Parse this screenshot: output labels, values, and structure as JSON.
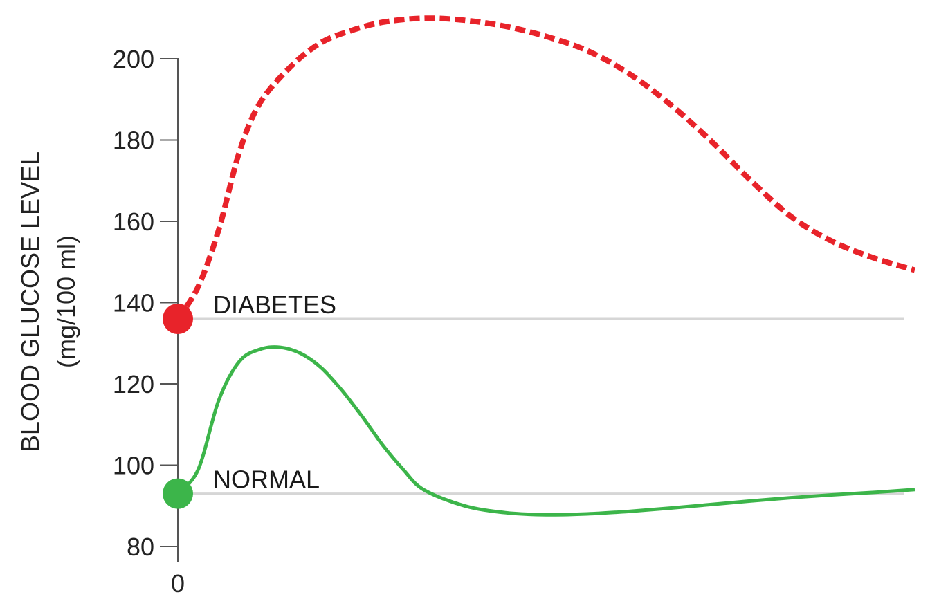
{
  "chart_data": {
    "type": "line",
    "title": "",
    "ylabel": "BLOOD GLUCOSE LEVEL",
    "ylabel_unit": "(mg/100 ml)",
    "xlabel": "",
    "x_tick_labels": [
      "0"
    ],
    "y_ticks": [
      80,
      100,
      120,
      140,
      160,
      180,
      200
    ],
    "ylim": [
      80,
      210
    ],
    "xlim": [
      0,
      3.6
    ],
    "grid": false,
    "legend": "none",
    "series": [
      {
        "name": "DIABETES",
        "color": "#e8232a",
        "style": "dashed",
        "baseline": 136,
        "x": [
          0,
          0.1,
          0.2,
          0.3,
          0.4,
          0.55,
          0.7,
          0.85,
          1.0,
          1.2,
          1.4,
          1.6,
          1.8,
          2.0,
          2.2,
          2.4,
          2.6,
          2.8,
          3.0,
          3.2,
          3.4,
          3.6
        ],
        "y": [
          136,
          144,
          158,
          177,
          189,
          198,
          204,
          207,
          209,
          210,
          209.5,
          208,
          205.5,
          202,
          196.5,
          189,
          180,
          170,
          161,
          155,
          151,
          148
        ]
      },
      {
        "name": "NORMAL",
        "color": "#3cb54a",
        "style": "solid",
        "baseline": 93,
        "x": [
          0,
          0.1,
          0.2,
          0.3,
          0.4,
          0.5,
          0.6,
          0.7,
          0.8,
          0.9,
          1.0,
          1.1,
          1.2,
          1.4,
          1.6,
          1.8,
          2.0,
          2.2,
          2.4,
          2.6,
          2.8,
          3.0,
          3.2,
          3.4,
          3.6
        ],
        "y": [
          93,
          99,
          116,
          125.5,
          128.5,
          129,
          127.5,
          124,
          118.5,
          112,
          105,
          99,
          94,
          90,
          88.3,
          87.8,
          88,
          88.6,
          89.4,
          90.3,
          91.2,
          92,
          92.7,
          93.3,
          94
        ]
      }
    ]
  }
}
